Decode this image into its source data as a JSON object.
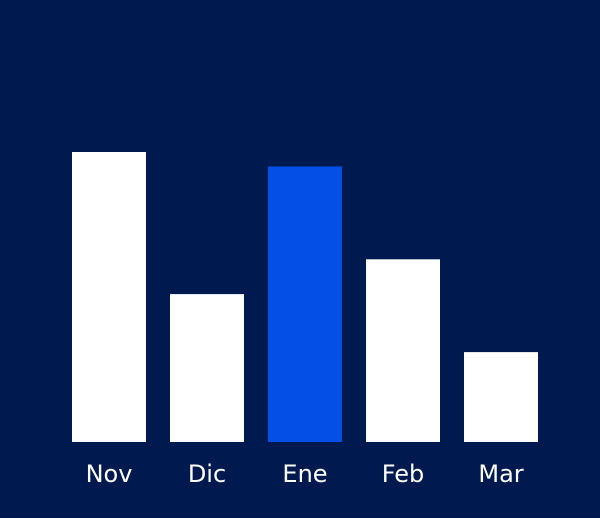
{
  "colors": {
    "background": "#001a50",
    "bar": "#ffffff",
    "highlight": "#0450e6",
    "text": "#ffffff"
  },
  "chart_data": {
    "type": "bar",
    "categories": [
      "Nov",
      "Dic",
      "Ene",
      "Feb",
      "Mar"
    ],
    "values": [
      100,
      51,
      95,
      63,
      31
    ],
    "highlight_index": 2,
    "title": "",
    "xlabel": "",
    "ylabel": "",
    "ylim": [
      0,
      100
    ],
    "grid": false,
    "legend": "none"
  }
}
